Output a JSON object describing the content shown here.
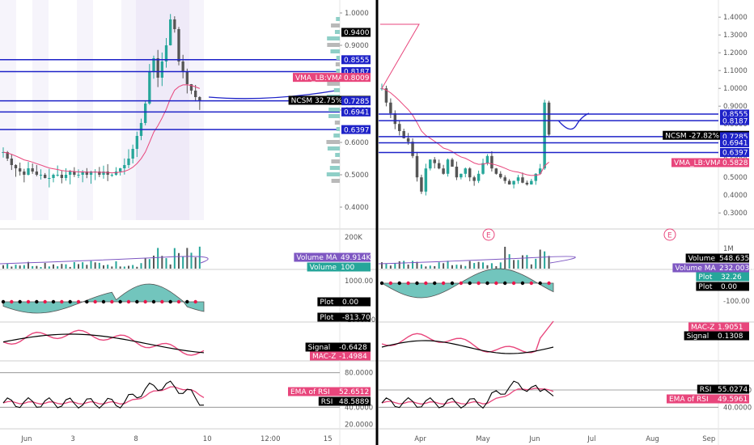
{
  "colors": {
    "up": "#26a69a",
    "down": "#555555",
    "blue_line": "#1e22c8",
    "vma": "#e8467c",
    "volume_ma": "#7e57c2",
    "signal": "#000000",
    "tag_dark": "#000000",
    "tag_blue": "#1e22c8",
    "tag_pink": "#e8467c",
    "tag_teal": "#26a69a",
    "tag_purple": "#7e57c2",
    "divider": "#000000"
  },
  "chart_data": [
    {
      "type": "candlestick",
      "panel": "left",
      "x_ticks": [
        "Jun",
        "3",
        "8",
        "10",
        "12:00",
        "15"
      ],
      "y_ticks": [
        "1.0000",
        "0.9000",
        "0.7000",
        "0.6000",
        "0.5000",
        "0.4000"
      ],
      "ylim": [
        0.36,
        1.02
      ],
      "horizontal_levels": [
        0.8555,
        0.8187,
        0.7285,
        0.6941,
        0.6397
      ],
      "price_tags": [
        {
          "label": "",
          "value": "0.9400",
          "style": "dark",
          "price": 0.94
        },
        {
          "label": "",
          "value": "0.8555",
          "style": "blue",
          "price": 0.8555
        },
        {
          "label": "",
          "value": "0.8187",
          "style": "blue",
          "price": 0.8187
        },
        {
          "label": "VMA_LB:VMA",
          "value": "0.8009",
          "style": "pink",
          "price": 0.8009
        },
        {
          "label": "NCSM 32.75%",
          "value": "0.7301",
          "style": "dark",
          "price": 0.7301
        },
        {
          "label": "",
          "value": "0.7285",
          "style": "blue",
          "price": 0.7285
        },
        {
          "label": "",
          "value": "0.6941",
          "style": "blue",
          "price": 0.6941
        },
        {
          "label": "",
          "value": "0.6397",
          "style": "blue",
          "price": 0.6397
        }
      ],
      "ohlc_close": [
        0.57,
        0.55,
        0.53,
        0.52,
        0.51,
        0.5,
        0.52,
        0.51,
        0.5,
        0.5,
        0.49,
        0.49,
        0.5,
        0.5,
        0.49,
        0.5,
        0.51,
        0.5,
        0.5,
        0.51,
        0.5,
        0.51,
        0.51,
        0.5,
        0.51,
        0.5,
        0.5,
        0.51,
        0.52,
        0.53,
        0.55,
        0.58,
        0.62,
        0.66,
        0.72,
        0.82,
        0.86,
        0.8,
        0.85,
        0.9,
        0.98,
        0.95,
        0.85,
        0.82,
        0.78,
        0.76,
        0.74,
        0.73
      ]
    },
    {
      "type": "candlestick",
      "panel": "right",
      "x_ticks": [
        "Apr",
        "May",
        "Jun",
        "Jul",
        "Aug",
        "Sep"
      ],
      "y_ticks": [
        "1.4000",
        "1.3000",
        "1.2000",
        "1.1000",
        "1.0000",
        "0.9000",
        "0.3000"
      ],
      "ylim": [
        0.26,
        1.46
      ],
      "horizontal_levels": [
        0.8555,
        0.8187,
        0.7285,
        0.6941,
        0.6397
      ],
      "price_tags": [
        {
          "label": "",
          "value": "0.8555",
          "style": "blue",
          "price": 0.8555
        },
        {
          "label": "",
          "value": "0.8187",
          "style": "blue",
          "price": 0.8187
        },
        {
          "label": "NCSM -27.82%",
          "value": "0.7362",
          "style": "dark",
          "price": 0.7362
        },
        {
          "label": "",
          "value": "0.7285",
          "style": "blue",
          "price": 0.7285
        },
        {
          "label": "",
          "value": "0.6941",
          "style": "blue",
          "price": 0.6941
        },
        {
          "label": "",
          "value": "0.6397",
          "style": "blue",
          "price": 0.6397
        },
        {
          "label": "VMA_LB:VMA",
          "value": "0.5828",
          "style": "pink",
          "price": 0.5828
        }
      ],
      "event_markers": [
        "E",
        "E"
      ],
      "ohlc_close": [
        1.0,
        0.92,
        0.86,
        0.8,
        0.76,
        0.72,
        0.7,
        0.62,
        0.5,
        0.42,
        0.55,
        0.6,
        0.58,
        0.55,
        0.52,
        0.6,
        0.56,
        0.5,
        0.52,
        0.55,
        0.5,
        0.48,
        0.52,
        0.58,
        0.62,
        0.55,
        0.52,
        0.5,
        0.48,
        0.46,
        0.48,
        0.5,
        0.47,
        0.46,
        0.48,
        0.52,
        0.55,
        0.92,
        0.74
      ]
    }
  ],
  "panels": {
    "volume_left": {
      "y_tick": "200K",
      "tags": [
        {
          "label": "Volume MA",
          "value": "49.914K",
          "style": "purple"
        },
        {
          "label": "Volume",
          "value": "100",
          "style": "teal"
        }
      ]
    },
    "volume_right": {
      "y_tick": "1M",
      "tags": [
        {
          "label": "Volume",
          "value": "548.635K",
          "style": "dark"
        },
        {
          "label": "Volume MA",
          "value": "232.003K",
          "style": "purple"
        }
      ]
    },
    "plot_left": {
      "y_ticks": [
        "1000.00",
        "-1000.00"
      ],
      "tags": [
        {
          "label": "Plot",
          "value": "0.00",
          "style": "dark"
        },
        {
          "label": "Plot",
          "value": "-813.70",
          "style": "dark"
        }
      ]
    },
    "plot_right": {
      "y_ticks": [
        "-100.00"
      ],
      "tags": [
        {
          "label": "Plot",
          "value": "32.26",
          "style": "teal"
        },
        {
          "label": "Plot",
          "value": "0.00",
          "style": "dark"
        }
      ]
    },
    "macz_left": {
      "tags": [
        {
          "label": "Signal",
          "value": "-0.6428",
          "style": "dark"
        },
        {
          "label": "MAC-Z",
          "value": "-1.4984",
          "style": "pink"
        }
      ]
    },
    "macz_right": {
      "tags": [
        {
          "label": "MAC-Z",
          "value": "1.9051",
          "style": "pink"
        },
        {
          "label": "Signal",
          "value": "0.1308",
          "style": "dark"
        }
      ]
    },
    "rsi_left": {
      "y_ticks": [
        "80.0000",
        "40.0000",
        "20.0000"
      ],
      "tags": [
        {
          "label": "EMA of RSI",
          "value": "52.6512",
          "style": "pink"
        },
        {
          "label": "RSI",
          "value": "48.5889",
          "style": "dark"
        }
      ]
    },
    "rsi_right": {
      "y_ticks": [
        "60.0000",
        "40.0000"
      ],
      "tags": [
        {
          "label": "RSI",
          "value": "55.0274",
          "style": "dark"
        },
        {
          "label": "EMA of RSI",
          "value": "49.5961",
          "style": "pink"
        }
      ]
    }
  }
}
